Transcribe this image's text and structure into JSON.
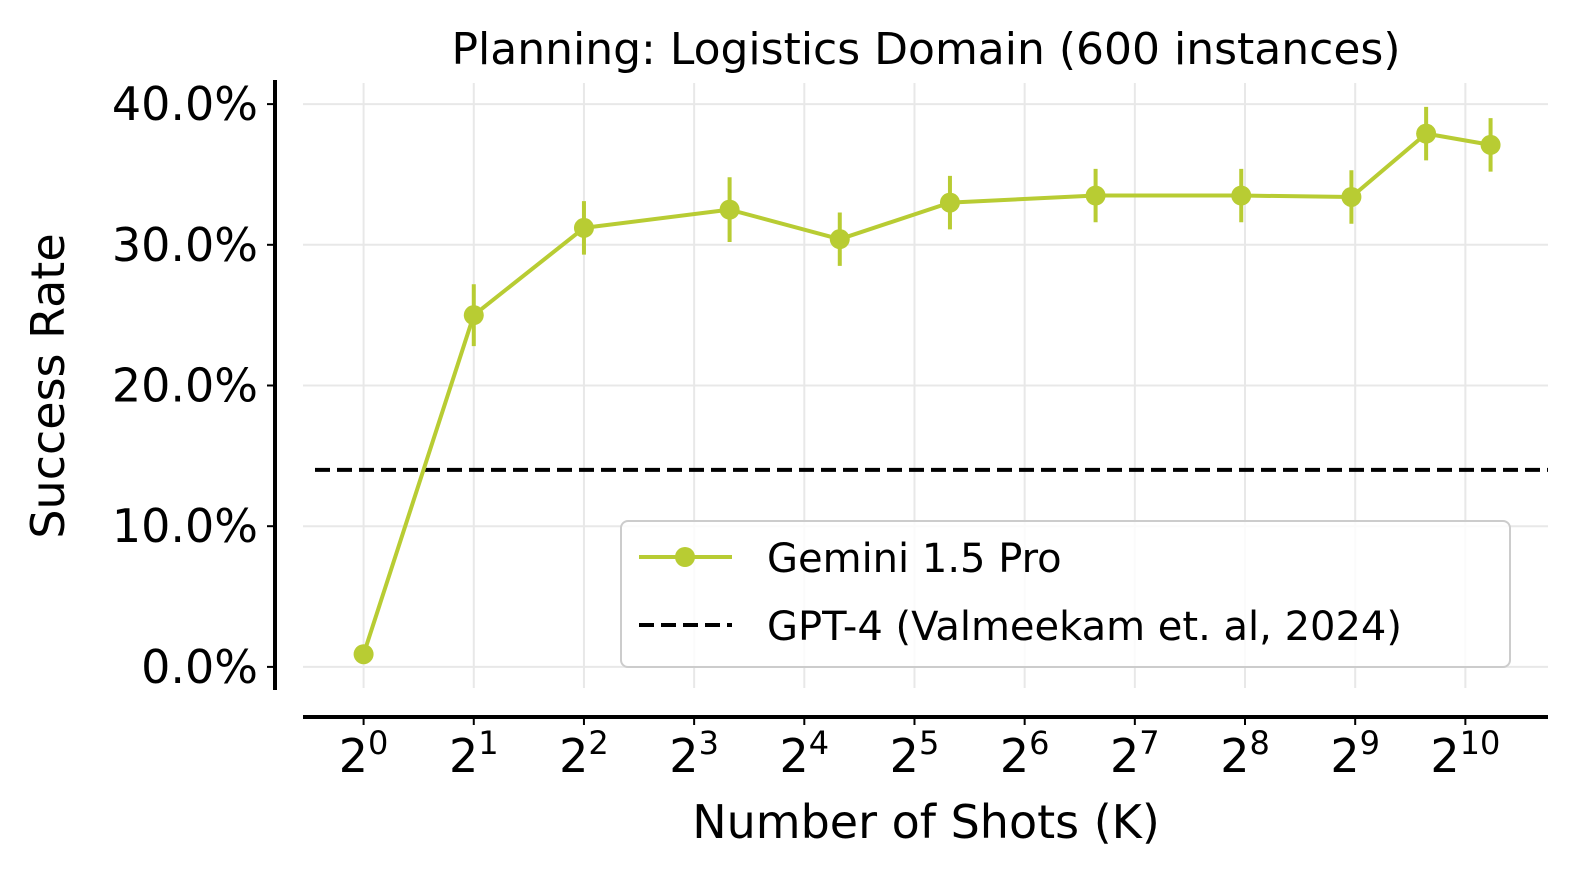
{
  "chart_data": {
    "type": "line",
    "title": "Planning: Logistics Domain (600 instances)",
    "xlabel": "Number of Shots (K)",
    "ylabel": "Success Rate",
    "x_scale": "log2",
    "xlim_exp": [
      -0.55,
      10.75
    ],
    "ylim": [
      -1.5,
      41.5
    ],
    "grid": true,
    "legend_position": "lower-right",
    "x_ticks": [
      {
        "base": "2",
        "exp": "0",
        "value": 1
      },
      {
        "base": "2",
        "exp": "1",
        "value": 2
      },
      {
        "base": "2",
        "exp": "2",
        "value": 4
      },
      {
        "base": "2",
        "exp": "3",
        "value": 8
      },
      {
        "base": "2",
        "exp": "4",
        "value": 16
      },
      {
        "base": "2",
        "exp": "5",
        "value": 32
      },
      {
        "base": "2",
        "exp": "6",
        "value": 64
      },
      {
        "base": "2",
        "exp": "7",
        "value": 128
      },
      {
        "base": "2",
        "exp": "8",
        "value": 256
      },
      {
        "base": "2",
        "exp": "9",
        "value": 512
      },
      {
        "base": "2",
        "exp": "10",
        "value": 1024
      }
    ],
    "y_ticks": [
      {
        "label": "0.0%",
        "value": 0
      },
      {
        "label": "10.0%",
        "value": 10
      },
      {
        "label": "20.0%",
        "value": 20
      },
      {
        "label": "30.0%",
        "value": 30
      },
      {
        "label": "40.0%",
        "value": 40
      }
    ],
    "series": [
      {
        "name": "Gemini 1.5 Pro",
        "color": "#b8cc33",
        "style": "line-marker",
        "x": [
          1,
          2,
          4,
          10,
          20,
          40,
          100,
          250,
          500,
          800,
          1200
        ],
        "y": [
          0.9,
          25.0,
          31.2,
          32.5,
          30.4,
          33.0,
          33.5,
          33.5,
          33.4,
          37.9,
          37.1
        ],
        "err": [
          0.6,
          2.2,
          1.9,
          2.3,
          1.9,
          1.9,
          1.9,
          1.9,
          1.9,
          1.9,
          1.9
        ]
      },
      {
        "name": "GPT-4 (Valmeekam et. al, 2024)",
        "color": "#000000",
        "style": "dashed-hline",
        "y": 14.0
      }
    ]
  }
}
